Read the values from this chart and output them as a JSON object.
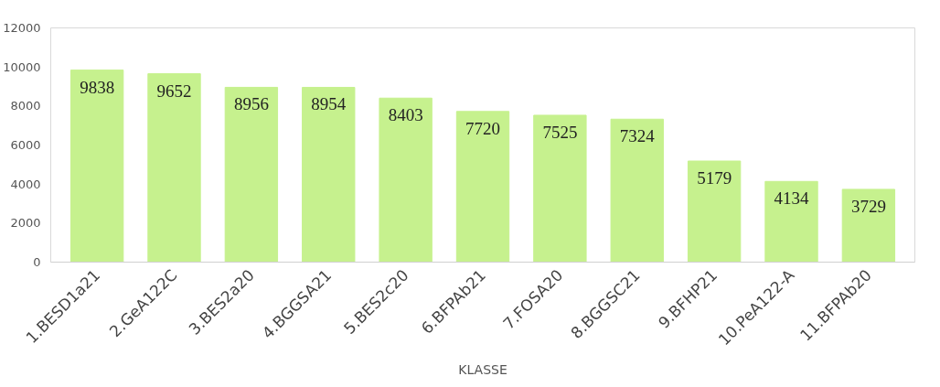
{
  "chart_data": {
    "type": "bar",
    "xlabel": "KLASSE",
    "categories": [
      "1.BESD1a21",
      "2.GeA122C",
      "3.BES2a20",
      "4.BGGSA21",
      "5.BES2c20",
      "6.BFPAb21",
      "7.FOSA20",
      "8.BGGSC21",
      "9.BFHP21",
      "10.PeA122-A",
      "11.BFPAb20"
    ],
    "values": [
      9838,
      9652,
      8956,
      8954,
      8403,
      7720,
      7525,
      7324,
      5179,
      4134,
      3729
    ],
    "color": "#c6f18e",
    "ylim": [
      0,
      12000
    ],
    "yticks": [
      0,
      2000,
      4000,
      6000,
      8000,
      10000,
      12000
    ],
    "grid": false,
    "data_labels": true
  }
}
